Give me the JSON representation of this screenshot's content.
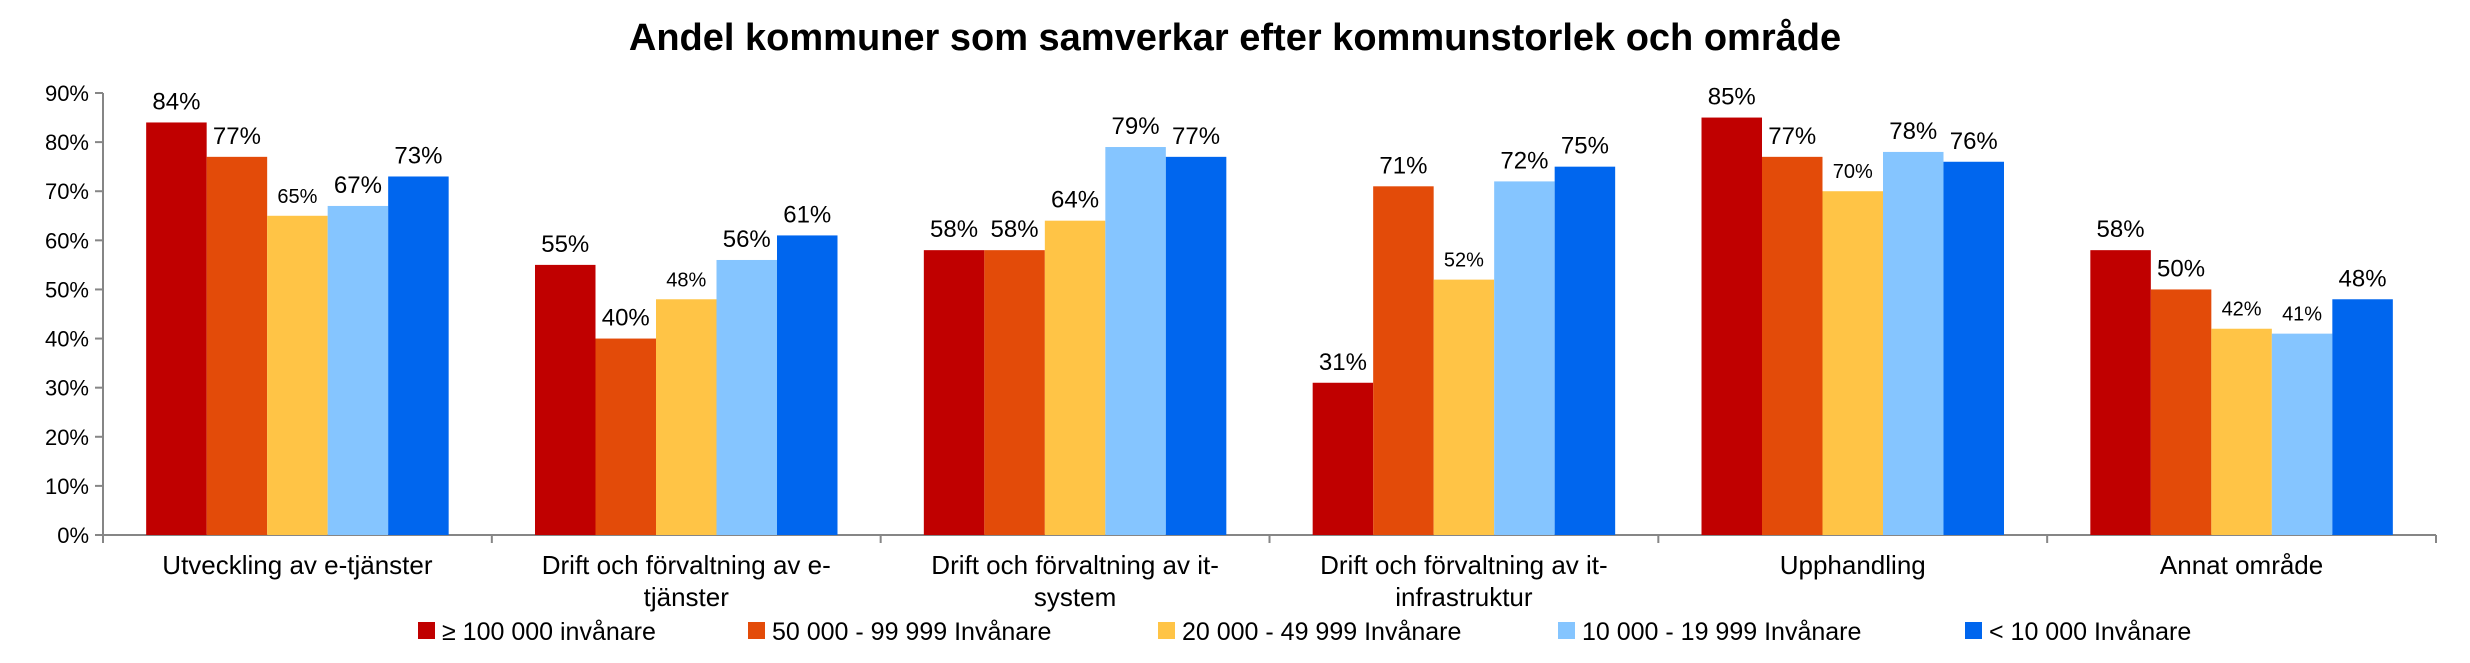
{
  "chart_data": {
    "type": "bar",
    "title": "Andel kommuner som samverkar  efter kommunstorlek och område",
    "xlabel": "",
    "ylabel": "",
    "ylim": [
      0,
      90
    ],
    "y_ticks": [
      "0%",
      "10%",
      "20%",
      "30%",
      "40%",
      "50%",
      "60%",
      "70%",
      "80%",
      "90%"
    ],
    "categories": [
      [
        "Utveckling av e-tjänster"
      ],
      [
        "Drift och förvaltning av e-",
        "tjänster"
      ],
      [
        "Drift och förvaltning av it-",
        "system"
      ],
      [
        "Drift och förvaltning av it-",
        "infrastruktur"
      ],
      [
        "Upphandling"
      ],
      [
        "Annat område"
      ]
    ],
    "series": [
      {
        "name": "≥ 100 000 invånare",
        "color": "#c00000",
        "values": [
          84,
          55,
          58,
          31,
          85,
          58
        ]
      },
      {
        "name": "50 000 - 99 999 Invånare",
        "color": "#e34b09",
        "values": [
          77,
          40,
          58,
          71,
          77,
          50
        ]
      },
      {
        "name": "20 000 - 49 999 Invånare",
        "color": "#ffc446",
        "values": [
          65,
          48,
          64,
          52,
          70,
          42
        ]
      },
      {
        "name": "10 000 - 19 999 Invånare",
        "color": "#85c5ff",
        "values": [
          67,
          56,
          79,
          72,
          78,
          41
        ]
      },
      {
        "name": "< 10 000 Invånare",
        "color": "#0066ee",
        "values": [
          73,
          61,
          77,
          75,
          76,
          48
        ]
      }
    ],
    "small_labels": [
      [
        false,
        false,
        false,
        false,
        false,
        false
      ],
      [
        false,
        false,
        false,
        false,
        false,
        false
      ],
      [
        true,
        true,
        false,
        true,
        true,
        true
      ],
      [
        false,
        false,
        false,
        false,
        false,
        true
      ],
      [
        false,
        false,
        false,
        false,
        false,
        false
      ]
    ],
    "value_format": "{v}%",
    "grid": false,
    "legend_position": "bottom"
  }
}
